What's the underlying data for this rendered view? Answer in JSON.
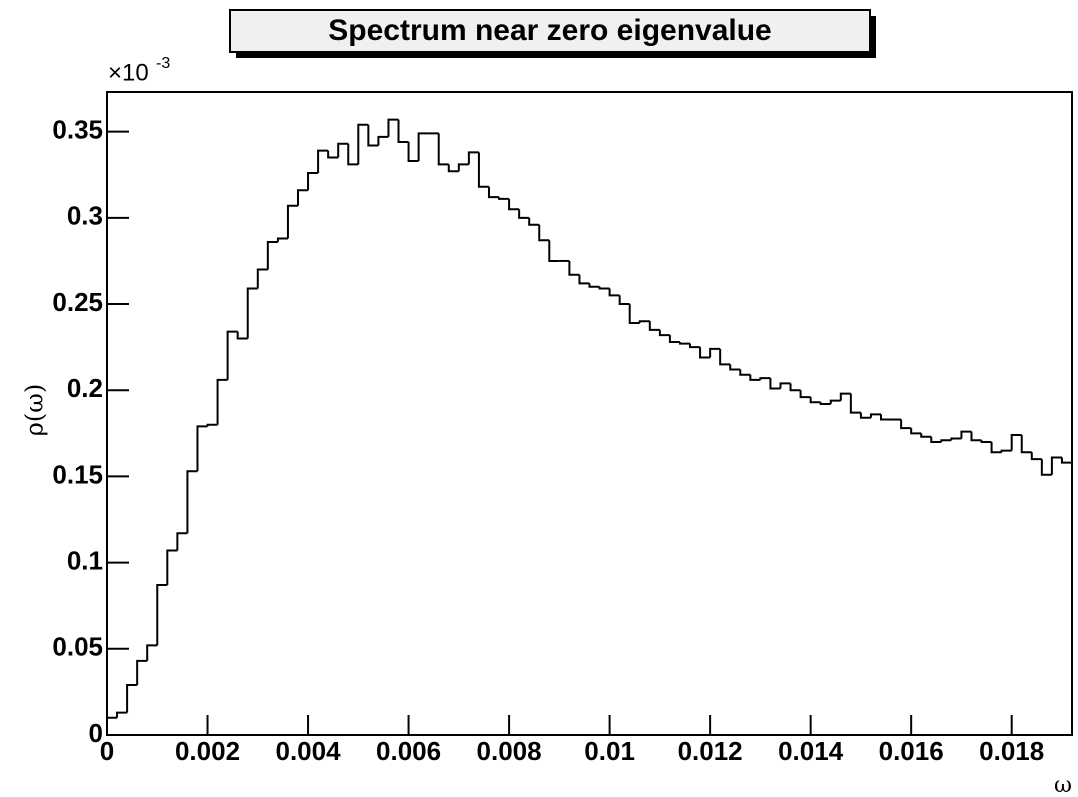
{
  "chart_data": {
    "type": "histogram",
    "title": "Spectrum near zero eigenvalue",
    "xlabel": "ω",
    "ylabel": "ρ(ω)",
    "y_scale_base": "×10",
    "y_scale_exponent": "-3",
    "bins": [
      0,
      0.0002,
      0.0004,
      0.0006,
      0.0008,
      0.001,
      0.0012,
      0.0014,
      0.0016,
      0.0018,
      0.002,
      0.0022,
      0.0024,
      0.0026,
      0.0028,
      0.003,
      0.0032,
      0.0034,
      0.0036,
      0.0038,
      0.004,
      0.0042,
      0.0044,
      0.0046,
      0.0048,
      0.005,
      0.0052,
      0.0054,
      0.0056,
      0.0058,
      0.006,
      0.0062,
      0.0064,
      0.0066,
      0.0068,
      0.007,
      0.0072,
      0.0074,
      0.0076,
      0.0078,
      0.008,
      0.0082,
      0.0084,
      0.0086,
      0.0088,
      0.009,
      0.0092,
      0.0094,
      0.0096,
      0.0098,
      0.01,
      0.0102,
      0.0104,
      0.0106,
      0.0108,
      0.011,
      0.0112,
      0.0114,
      0.0116,
      0.0118,
      0.012,
      0.0122,
      0.0124,
      0.0126,
      0.0128,
      0.013,
      0.0132,
      0.0134,
      0.0136,
      0.0138,
      0.014,
      0.0142,
      0.0144,
      0.0146,
      0.0148,
      0.015,
      0.0152,
      0.0154,
      0.0156,
      0.0158,
      0.016,
      0.0162,
      0.0164,
      0.0166,
      0.0168,
      0.017,
      0.0172,
      0.0174,
      0.0176,
      0.0178,
      0.018,
      0.0182,
      0.0184,
      0.0186,
      0.0188,
      0.019,
      0.0192
    ],
    "values": [
      0.01,
      0.013,
      0.029,
      0.043,
      0.052,
      0.087,
      0.107,
      0.117,
      0.153,
      0.179,
      0.18,
      0.206,
      0.234,
      0.23,
      0.259,
      0.27,
      0.286,
      0.288,
      0.307,
      0.316,
      0.326,
      0.339,
      0.335,
      0.343,
      0.331,
      0.354,
      0.342,
      0.347,
      0.357,
      0.344,
      0.333,
      0.349,
      0.349,
      0.331,
      0.327,
      0.331,
      0.338,
      0.318,
      0.312,
      0.311,
      0.305,
      0.3,
      0.296,
      0.287,
      0.275,
      0.275,
      0.267,
      0.262,
      0.26,
      0.259,
      0.255,
      0.25,
      0.239,
      0.24,
      0.235,
      0.232,
      0.228,
      0.227,
      0.225,
      0.219,
      0.224,
      0.215,
      0.212,
      0.209,
      0.206,
      0.207,
      0.201,
      0.204,
      0.2,
      0.196,
      0.193,
      0.192,
      0.194,
      0.198,
      0.187,
      0.184,
      0.186,
      0.183,
      0.183,
      0.178,
      0.175,
      0.173,
      0.17,
      0.171,
      0.172,
      0.176,
      0.171,
      0.17,
      0.164,
      0.165,
      0.174,
      0.164,
      0.16,
      0.151,
      0.161,
      0.158
    ],
    "color": "#000000",
    "xlim": [
      0,
      0.0192
    ],
    "xticks": [
      0,
      0.002,
      0.004,
      0.006,
      0.008,
      0.01,
      0.012,
      0.014,
      0.016,
      0.018
    ],
    "ylim": [
      0,
      0.373
    ],
    "yticks": [
      0,
      0.05,
      0.1,
      0.15,
      0.2,
      0.25,
      0.3,
      0.35
    ]
  }
}
